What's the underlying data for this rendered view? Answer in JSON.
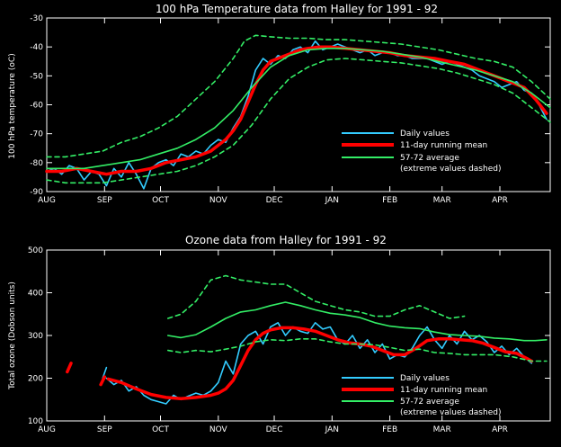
{
  "chart_data": [
    {
      "type": "line",
      "title": "100 hPa Temperature data from Halley for 1991 - 92",
      "ylabel": "100 hPa temperature (oC)",
      "xlabel": "",
      "ylim": [
        -90,
        -30
      ],
      "y_ticks": [
        "-30",
        "-40",
        "-50",
        "-60",
        "-70",
        "-80",
        "-90"
      ],
      "y_tick_values": [
        -30,
        -40,
        -50,
        -60,
        -70,
        -80,
        -90
      ],
      "x_ticks": [
        "AUG",
        "SEP",
        "OCT",
        "NOV",
        "DEC",
        "JAN",
        "FEB",
        "MAR",
        "APR"
      ],
      "x_tick_days": [
        0,
        31,
        61,
        92,
        122,
        153,
        184,
        212,
        243
      ],
      "xlim_days": [
        0,
        270
      ],
      "grid": false,
      "legend": [
        "Daily values",
        "11-day running mean",
        "57-72 average",
        "(extreme values dashed)"
      ],
      "legend_position": "bottom-right",
      "series": [
        {
          "name": "Daily values",
          "color": "#33ccff",
          "x": [
            0,
            4,
            8,
            12,
            16,
            20,
            24,
            28,
            32,
            36,
            40,
            44,
            48,
            52,
            56,
            60,
            64,
            68,
            72,
            76,
            80,
            84,
            88,
            92,
            96,
            100,
            104,
            108,
            112,
            116,
            120,
            124,
            128,
            132,
            136,
            140,
            144,
            148,
            152,
            156,
            160,
            164,
            168,
            172,
            176,
            180,
            184,
            188,
            192,
            196,
            200,
            204,
            208,
            212,
            216,
            220,
            224,
            228,
            232,
            236,
            240,
            244,
            248,
            252,
            256,
            260,
            264,
            268
          ],
          "y": [
            -83,
            -82,
            -84,
            -81,
            -82,
            -86,
            -83,
            -84,
            -88,
            -82,
            -85,
            -80,
            -84,
            -89,
            -82,
            -80,
            -79,
            -81,
            -77,
            -78,
            -76,
            -77,
            -74,
            -72,
            -73,
            -68,
            -64,
            -57,
            -48,
            -44,
            -46,
            -43,
            -44,
            -41,
            -40,
            -42,
            -38,
            -41,
            -40,
            -39,
            -40,
            -41,
            -42,
            -41,
            -43,
            -42,
            -42,
            -43,
            -43,
            -44,
            -44,
            -44,
            -45,
            -46,
            -45,
            -46,
            -47,
            -48,
            -50,
            -51,
            -52,
            -54,
            -53,
            -52,
            -55,
            -56,
            -60,
            -65
          ]
        },
        {
          "name": "11-day running mean",
          "color": "#ff0000",
          "x": [
            0,
            8,
            16,
            24,
            32,
            40,
            48,
            56,
            64,
            72,
            80,
            88,
            92,
            96,
            100,
            104,
            108,
            112,
            116,
            120,
            124,
            128,
            132,
            136,
            140,
            146,
            152,
            160,
            168,
            176,
            184,
            192,
            200,
            208,
            216,
            224,
            232,
            240,
            248,
            256,
            262,
            268
          ],
          "y": [
            -83,
            -83,
            -82,
            -83,
            -84,
            -83,
            -83,
            -82,
            -80,
            -79,
            -78,
            -76,
            -74,
            -72,
            -69,
            -65,
            -59,
            -53,
            -48,
            -45,
            -44,
            -43,
            -42,
            -41,
            -40.5,
            -40,
            -40,
            -40.5,
            -41,
            -41.5,
            -42,
            -43,
            -43.5,
            -44,
            -45,
            -46,
            -48,
            -50,
            -52,
            -54,
            -58,
            -63
          ]
        },
        {
          "name": "57-72 average",
          "color": "#33ee66",
          "x": [
            0,
            10,
            20,
            30,
            40,
            50,
            60,
            70,
            80,
            90,
            100,
            110,
            120,
            130,
            140,
            150,
            160,
            170,
            180,
            190,
            200,
            210,
            220,
            230,
            240,
            250,
            260,
            270
          ],
          "y": [
            -82,
            -82,
            -82,
            -81,
            -80,
            -79,
            -77,
            -75,
            -72,
            -68,
            -62,
            -54,
            -47,
            -43,
            -41,
            -40.5,
            -40.5,
            -41,
            -41.5,
            -42.5,
            -43.5,
            -45,
            -46.5,
            -48,
            -50,
            -52,
            -56,
            -61
          ]
        },
        {
          "name": "57-72 upper extreme",
          "color": "#33ee66",
          "x": [
            0,
            10,
            20,
            30,
            40,
            50,
            60,
            70,
            80,
            90,
            100,
            106,
            112,
            120,
            130,
            140,
            150,
            160,
            170,
            180,
            190,
            200,
            210,
            220,
            230,
            240,
            250,
            260,
            270
          ],
          "y": [
            -78,
            -78,
            -77,
            -76,
            -73,
            -71,
            -68,
            -64,
            -58,
            -52,
            -44,
            -38,
            -36,
            -36.5,
            -37,
            -37,
            -37.5,
            -37.5,
            -38,
            -38.5,
            -39,
            -40,
            -41,
            -42.5,
            -44,
            -45,
            -47,
            -52,
            -58
          ]
        },
        {
          "name": "57-72 lower extreme",
          "color": "#33ee66",
          "x": [
            0,
            10,
            20,
            30,
            40,
            50,
            60,
            70,
            80,
            90,
            100,
            110,
            120,
            130,
            140,
            150,
            160,
            170,
            180,
            190,
            200,
            210,
            220,
            230,
            240,
            250,
            260,
            270
          ],
          "y": [
            -86,
            -87,
            -87,
            -87,
            -86,
            -85,
            -84,
            -83,
            -81,
            -78,
            -74,
            -67,
            -58,
            -51,
            -47,
            -44.5,
            -44,
            -44.5,
            -45,
            -45.5,
            -46.5,
            -47.5,
            -49,
            -51,
            -53,
            -56,
            -61,
            -66
          ]
        }
      ]
    },
    {
      "type": "line",
      "title": "Ozone data from Halley for 1991 - 92",
      "ylabel": "Total ozone (Dobson units)",
      "xlabel": "",
      "ylim": [
        100,
        500
      ],
      "y_ticks": [
        "100",
        "200",
        "300",
        "400",
        "500"
      ],
      "y_tick_values": [
        100,
        200,
        300,
        400,
        500
      ],
      "x_ticks": [
        "AUG",
        "SEP",
        "OCT",
        "NOV",
        "DEC",
        "JAN",
        "FEB",
        "MAR",
        "APR"
      ],
      "x_tick_days": [
        0,
        31,
        61,
        92,
        122,
        153,
        184,
        212,
        243
      ],
      "xlim_days": [
        0,
        270
      ],
      "grid": false,
      "legend": [
        "Daily values",
        "11-day running mean",
        "57-72 average",
        "(extreme values dashed)"
      ],
      "legend_position": "bottom-right",
      "series": [
        {
          "name": "Daily values",
          "color": "#33ccff",
          "x": [
            32,
            36,
            40,
            44,
            48,
            52,
            56,
            60,
            64,
            68,
            72,
            76,
            80,
            84,
            88,
            92,
            96,
            100,
            104,
            108,
            112,
            116,
            120,
            124,
            128,
            132,
            136,
            140,
            144,
            148,
            152,
            156,
            160,
            164,
            168,
            172,
            176,
            180,
            184,
            188,
            192,
            196,
            200,
            204,
            208,
            212,
            216,
            220,
            224,
            228,
            232,
            236,
            240,
            244,
            248,
            252,
            256,
            260
          ],
          "y": [
            200,
            185,
            195,
            170,
            180,
            160,
            150,
            145,
            140,
            160,
            150,
            158,
            165,
            160,
            170,
            190,
            240,
            210,
            280,
            300,
            310,
            280,
            320,
            330,
            300,
            320,
            310,
            305,
            330,
            315,
            320,
            290,
            280,
            300,
            270,
            290,
            260,
            280,
            245,
            255,
            250,
            270,
            300,
            320,
            290,
            270,
            300,
            280,
            310,
            290,
            300,
            285,
            260,
            275,
            255,
            270,
            250,
            235
          ]
        },
        {
          "name": "Daily values (early)",
          "color": "#33ccff",
          "x": [
            30,
            32
          ],
          "y": [
            200,
            225
          ]
        },
        {
          "name": "11-day running mean",
          "color": "#ff0000",
          "x": [
            33,
            40,
            48,
            56,
            64,
            72,
            80,
            88,
            92,
            96,
            100,
            104,
            108,
            112,
            116,
            120,
            126,
            132,
            138,
            144,
            150,
            156,
            162,
            168,
            174,
            180,
            186,
            192,
            198,
            204,
            210,
            216,
            222,
            228,
            234,
            240,
            246,
            252,
            258,
            260
          ],
          "y": [
            198,
            190,
            175,
            162,
            155,
            152,
            155,
            160,
            165,
            175,
            195,
            230,
            265,
            290,
            305,
            313,
            318,
            318,
            315,
            310,
            300,
            290,
            283,
            280,
            275,
            265,
            255,
            255,
            270,
            288,
            292,
            292,
            290,
            288,
            282,
            272,
            262,
            258,
            245,
            240
          ]
        },
        {
          "name": "11-day running mean (early)",
          "color": "#ff0000",
          "x": [
            11,
            13
          ],
          "y": [
            215,
            235
          ]
        },
        {
          "name": "11-day running mean (sep)",
          "color": "#ff0000",
          "x": [
            29,
            31
          ],
          "y": [
            185,
            203
          ]
        },
        {
          "name": "57-72 average",
          "color": "#33ee66",
          "x": [
            65,
            72,
            80,
            88,
            96,
            104,
            112,
            120,
            128,
            136,
            144,
            152,
            160,
            168,
            176,
            184,
            192,
            200,
            208,
            216,
            224,
            232,
            240,
            248,
            256,
            262,
            268
          ],
          "y": [
            300,
            295,
            302,
            320,
            340,
            355,
            360,
            370,
            378,
            370,
            360,
            352,
            348,
            342,
            330,
            322,
            318,
            316,
            308,
            302,
            300,
            298,
            294,
            292,
            288,
            288,
            290
          ]
        },
        {
          "name": "57-72 upper extreme",
          "color": "#33ee66",
          "x": [
            65,
            72,
            80,
            88,
            96,
            104,
            112,
            120,
            128,
            136,
            144,
            152,
            160,
            168,
            176,
            184,
            192,
            200,
            208,
            216,
            224
          ],
          "y": [
            340,
            350,
            380,
            430,
            440,
            430,
            425,
            420,
            420,
            400,
            380,
            370,
            360,
            355,
            345,
            345,
            360,
            370,
            355,
            340,
            345
          ]
        },
        {
          "name": "57-72 lower extreme",
          "color": "#33ee66",
          "x": [
            65,
            72,
            80,
            88,
            96,
            104,
            112,
            120,
            128,
            136,
            144,
            152,
            160,
            168,
            176,
            184,
            192,
            200,
            208,
            216,
            224,
            232,
            240,
            250,
            260,
            268
          ],
          "y": [
            265,
            260,
            265,
            262,
            268,
            275,
            285,
            290,
            288,
            292,
            292,
            285,
            280,
            280,
            278,
            272,
            265,
            268,
            260,
            258,
            255,
            255,
            255,
            250,
            240,
            240
          ]
        }
      ]
    }
  ]
}
